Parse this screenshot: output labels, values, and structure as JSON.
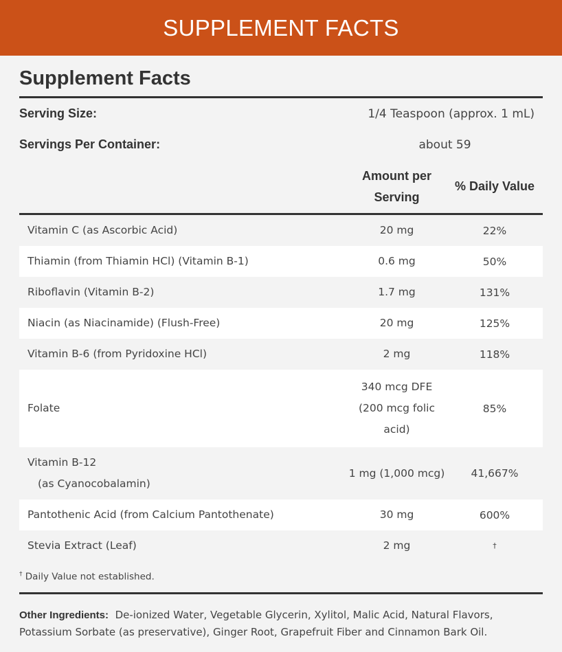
{
  "banner": "SUPPLEMENT FACTS",
  "title": "Supplement Facts",
  "serving_size": {
    "label": "Serving Size:",
    "value": "1/4 Teaspoon (approx. 1 mL)"
  },
  "servings_per_container": {
    "label": "Servings Per Container:",
    "value": "about 59"
  },
  "columns": {
    "amount_line1": "Amount per",
    "amount_line2": "Serving",
    "daily_value": "% Daily Value"
  },
  "rows": [
    {
      "name": "Vitamin C (as Ascorbic Acid)",
      "amount": "20 mg",
      "dv": "22%"
    },
    {
      "name": "Thiamin (from Thiamin HCl) (Vitamin B-1)",
      "amount": "0.6 mg",
      "dv": "50%"
    },
    {
      "name": "Riboflavin (Vitamin B-2)",
      "amount": "1.7 mg",
      "dv": "131%"
    },
    {
      "name": "Niacin (as Niacinamide) (Flush-Free)",
      "amount": "20 mg",
      "dv": "125%"
    },
    {
      "name": "Vitamin B-6 (from Pyridoxine HCl)",
      "amount": "2 mg",
      "dv": "118%"
    },
    {
      "name": "Folate",
      "amount_line1": "340 mcg DFE",
      "amount_line2": "(200 mcg folic",
      "amount_line3": "acid)",
      "dv": "85%"
    },
    {
      "name": "Vitamin B-12",
      "name_sub": "(as Cyanocobalamin)",
      "amount": "1 mg (1,000 mcg)",
      "dv": "41,667%"
    },
    {
      "name": "Pantothenic Acid (from Calcium Pantothenate)",
      "amount": "30 mg",
      "dv": "600%"
    },
    {
      "name": "Stevia Extract (Leaf)",
      "amount": "2 mg",
      "dv": "†"
    }
  ],
  "footnote": {
    "mark": "†",
    "text": " Daily Value not established."
  },
  "other_ingredients": {
    "label": "Other Ingredients:",
    "text": "De-ionized Water, Vegetable Glycerin, Xylitol, Malic Acid, Natural Flavors, Potassium Sorbate (as preservative), Ginger Root, Grapefruit Fiber and Cinnamon Bark Oil."
  },
  "colors": {
    "banner": "#cb5118",
    "background": "#f3f3f3",
    "rule": "#333333"
  }
}
